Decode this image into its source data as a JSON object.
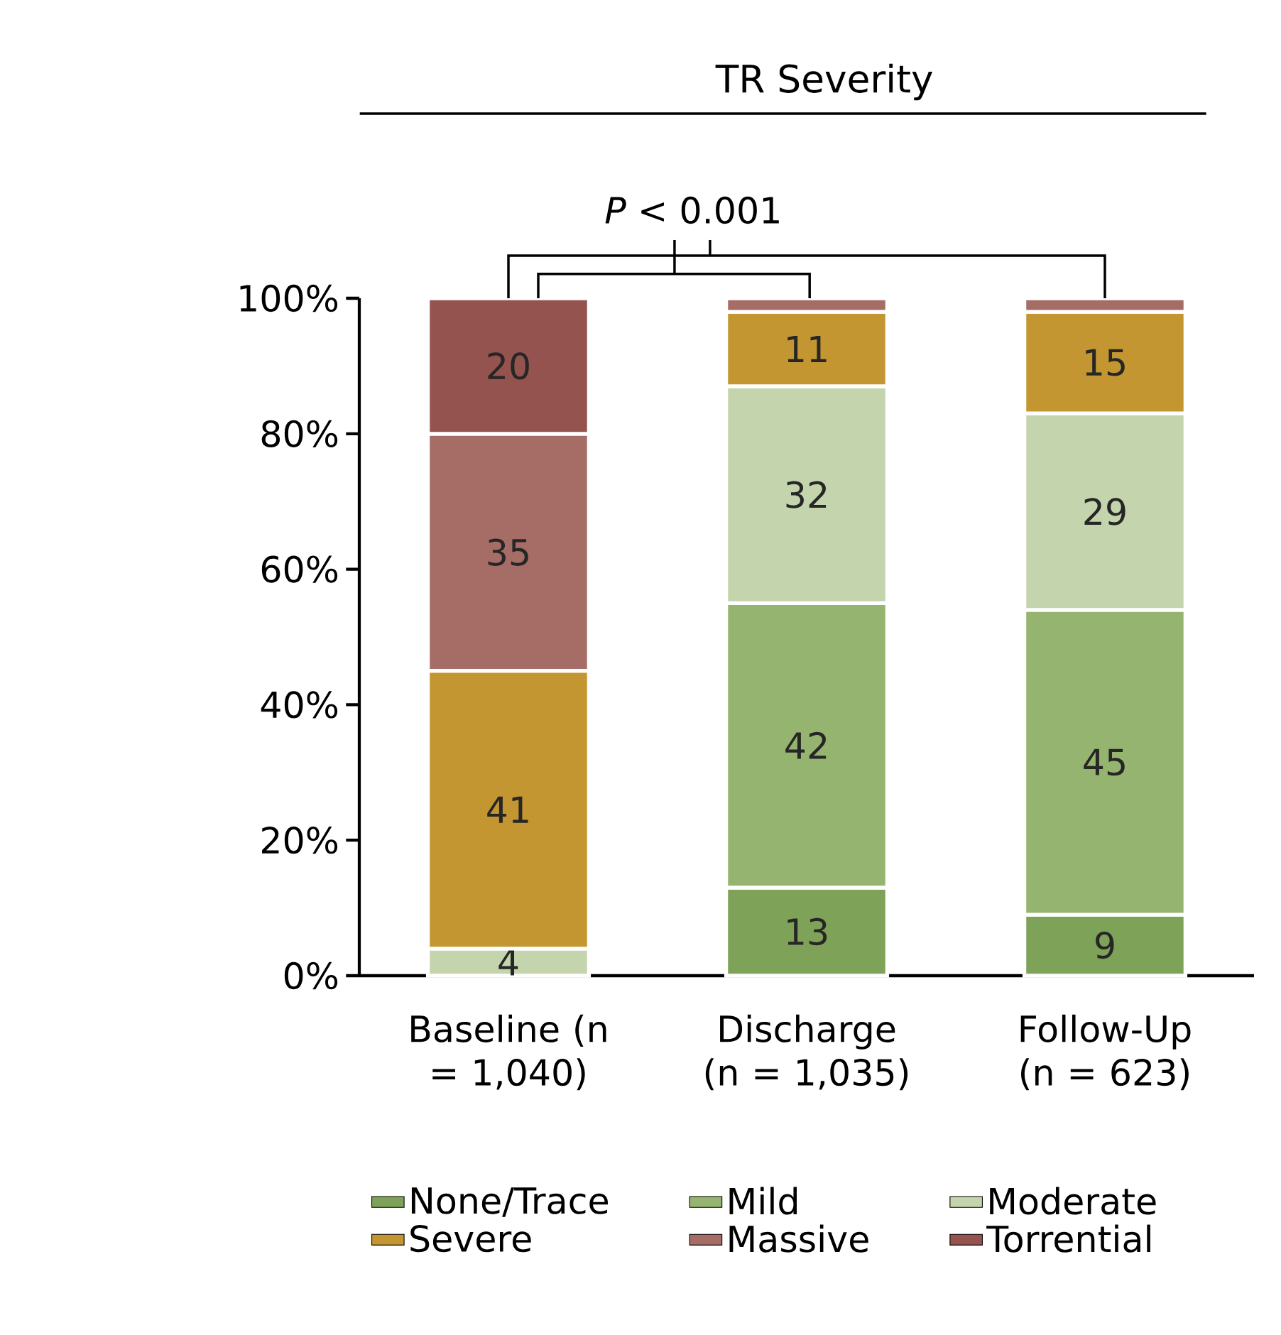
{
  "chart_data": {
    "type": "bar",
    "stacked": true,
    "title": "TR Severity",
    "categories": [
      "Baseline (n = 1,040)",
      "Discharge (n = 1,035)",
      "Follow-Up (n = 623)"
    ],
    "series": [
      {
        "name": "None/Trace",
        "color": "#7ea257",
        "values": [
          null,
          13,
          9
        ],
        "value_labels": [
          null,
          "13",
          "9"
        ]
      },
      {
        "name": "Mild",
        "color": "#95b46f",
        "values": [
          null,
          42,
          45
        ],
        "value_labels": [
          null,
          "42",
          "45"
        ]
      },
      {
        "name": "Moderate",
        "color": "#c4d4ad",
        "values": [
          4,
          32,
          29
        ],
        "value_labels": [
          "4",
          "32",
          "29"
        ]
      },
      {
        "name": "Severe",
        "color": "#c39632",
        "values": [
          41,
          11,
          15
        ],
        "value_labels": [
          "41",
          "11",
          "15"
        ]
      },
      {
        "name": "Massive",
        "color": "#a66d66",
        "values": [
          35,
          2,
          2
        ],
        "value_labels": [
          "35",
          null,
          null
        ]
      },
      {
        "name": "Torrential",
        "color": "#955350",
        "values": [
          20,
          null,
          null
        ],
        "value_labels": [
          "20",
          null,
          null
        ]
      }
    ],
    "ylim": [
      0,
      100
    ],
    "yticks": [
      {
        "value": 0,
        "label": "0%"
      },
      {
        "value": 20,
        "label": "20%"
      },
      {
        "value": 40,
        "label": "40%"
      },
      {
        "value": 60,
        "label": "60%"
      },
      {
        "value": 80,
        "label": "80%"
      },
      {
        "value": 100,
        "label": "100%"
      }
    ],
    "annotations": [
      "*P* < 0.001"
    ],
    "legend": "bottom",
    "grid": false
  }
}
